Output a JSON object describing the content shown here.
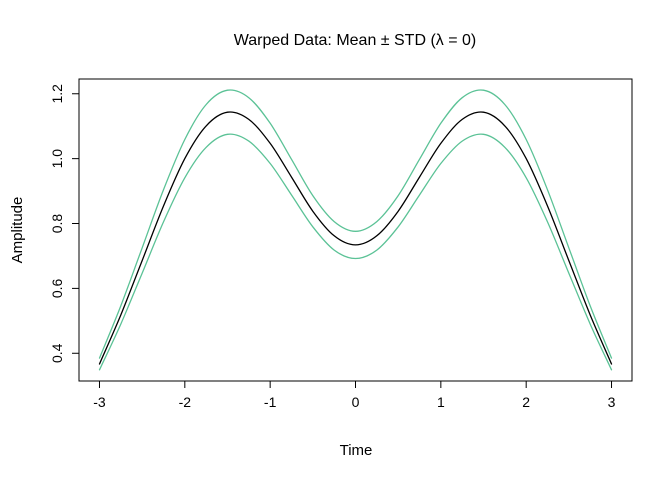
{
  "window": {
    "background": "#ffffff"
  },
  "chart_data": {
    "type": "line",
    "title": "Warped Data: Mean ± STD (λ = 0)",
    "xlabel": "Time",
    "ylabel": "Amplitude",
    "grid": false,
    "legend": "none",
    "xlim": [
      -3.24,
      3.24
    ],
    "ylim": [
      0.3145,
      1.2455
    ],
    "x_ticks": [
      "-3",
      "-2",
      "-1",
      "0",
      "1",
      "2",
      "3"
    ],
    "x_tick_values": [
      -3,
      -2,
      -1,
      0,
      1,
      2,
      3
    ],
    "y_ticks": [
      "0.4",
      "0.6",
      "0.8",
      "1.0",
      "1.2"
    ],
    "y_tick_values": [
      0.4,
      0.6,
      0.8,
      1.0,
      1.2
    ],
    "colors": {
      "mean": "#000000",
      "std_band": "#5BC296",
      "box": "#000000"
    },
    "x": [
      -3,
      -2.75,
      -2.5,
      -2.25,
      -2,
      -1.75,
      -1.5,
      -1.25,
      -1,
      -0.75,
      -0.5,
      -0.25,
      0,
      0.25,
      0.5,
      0.75,
      1,
      1.25,
      1.5,
      1.75,
      2,
      2.25,
      2.5,
      2.75,
      3
    ],
    "series": [
      {
        "name": "mean",
        "color": "#000000",
        "values": [
          0.367,
          0.518,
          0.686,
          0.854,
          1.0,
          1.101,
          1.143,
          1.121,
          1.047,
          0.943,
          0.838,
          0.762,
          0.734,
          0.762,
          0.838,
          0.943,
          1.047,
          1.121,
          1.143,
          1.101,
          1.0,
          0.854,
          0.686,
          0.518,
          0.367
        ]
      },
      {
        "name": "mean_plus_std",
        "color": "#5BC296",
        "values": [
          0.385,
          0.546,
          0.725,
          0.904,
          1.059,
          1.167,
          1.211,
          1.188,
          1.109,
          0.998,
          0.886,
          0.806,
          0.776,
          0.806,
          0.886,
          0.998,
          1.109,
          1.188,
          1.211,
          1.167,
          1.059,
          0.904,
          0.725,
          0.546,
          0.385
        ]
      },
      {
        "name": "mean_minus_std",
        "color": "#5BC296",
        "values": [
          0.349,
          0.49,
          0.647,
          0.805,
          0.941,
          1.035,
          1.075,
          1.054,
          0.985,
          0.888,
          0.79,
          0.718,
          0.692,
          0.718,
          0.79,
          0.888,
          0.985,
          1.054,
          1.075,
          1.035,
          0.941,
          0.805,
          0.647,
          0.49,
          0.349
        ]
      }
    ]
  }
}
